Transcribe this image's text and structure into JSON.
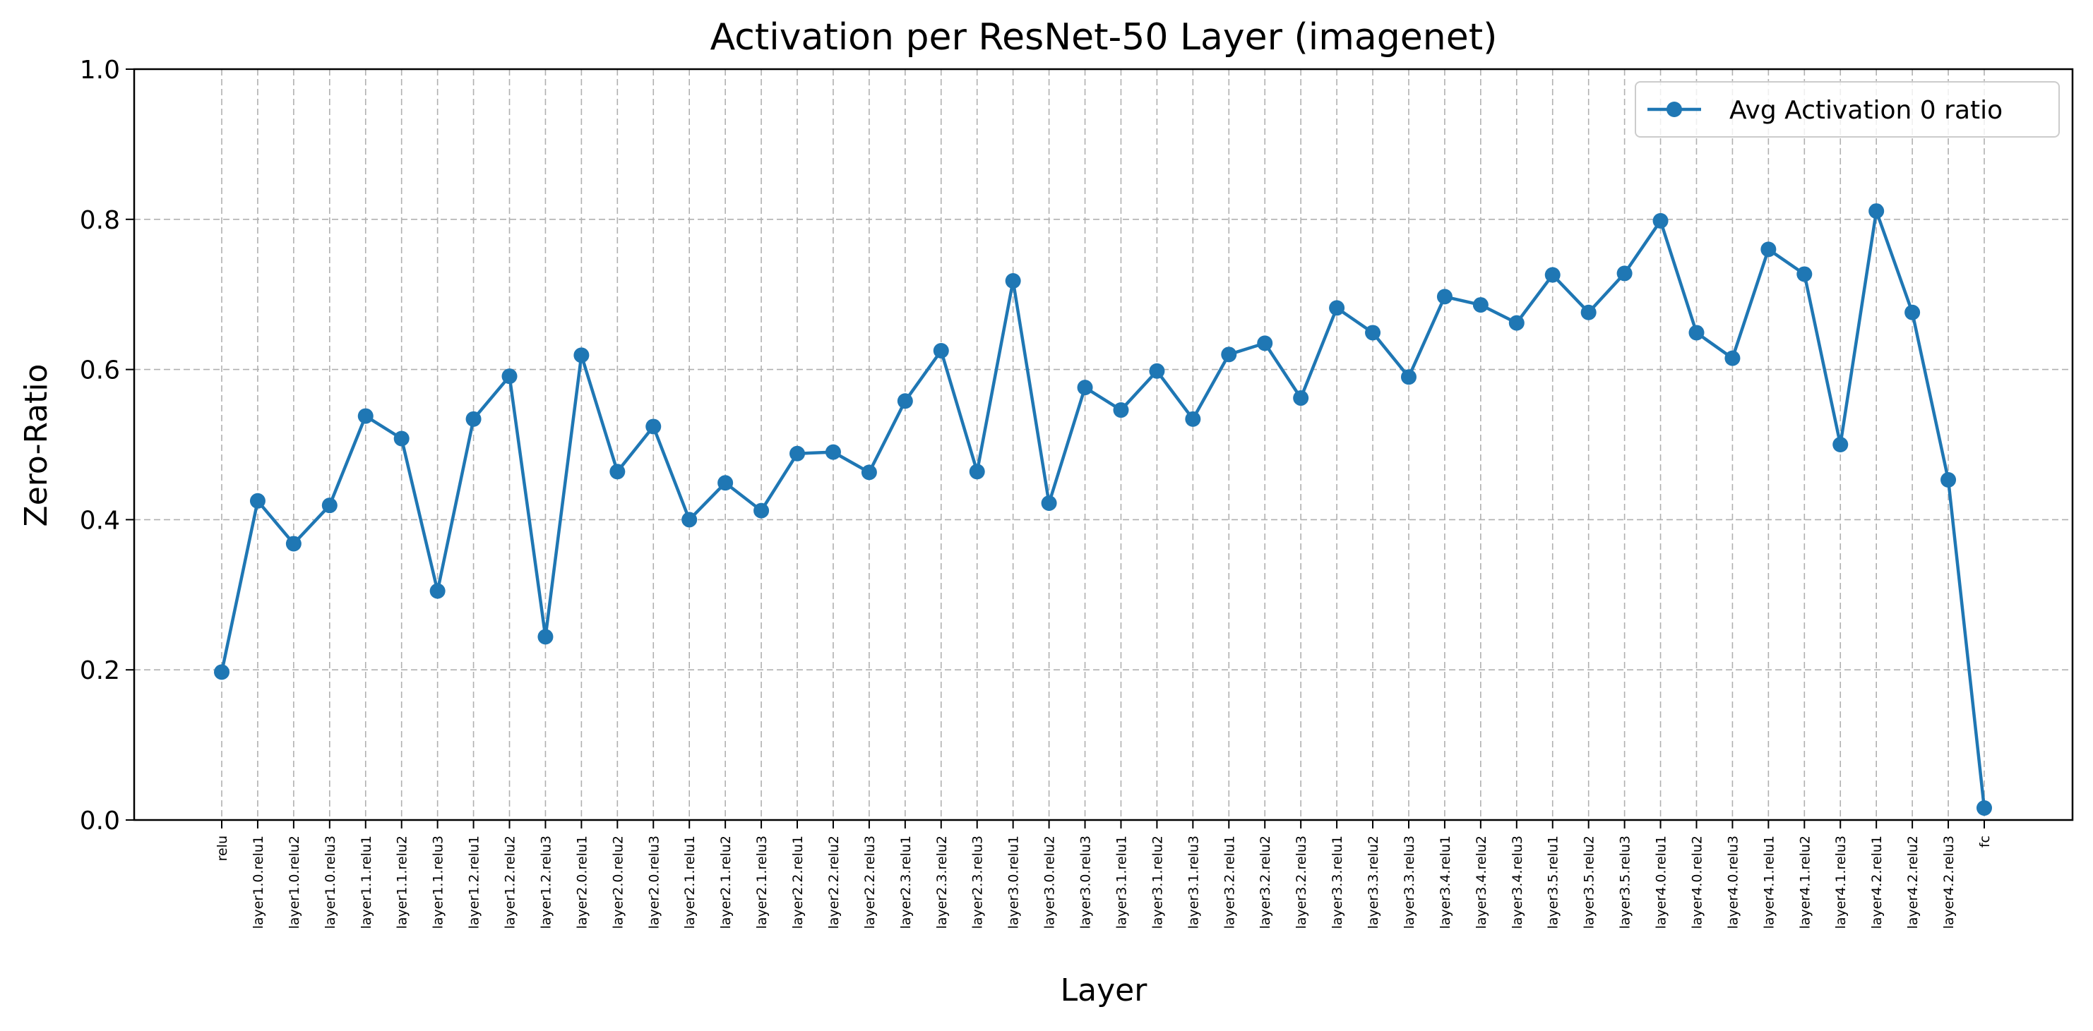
{
  "chart_data": {
    "type": "line",
    "title": "Activation  per ResNet-50 Layer (imagenet)",
    "xlabel": "Layer",
    "ylabel": "Zero-Ratio",
    "ylim": [
      0,
      1
    ],
    "yticks": [
      "0.0",
      "0.2",
      "0.4",
      "0.6",
      "0.8",
      "1.0"
    ],
    "grid": true,
    "legend_position": "top-right",
    "colors": {
      "series": "#1f77b4",
      "grid": "#b0b0b0",
      "axes": "#000000"
    },
    "categories": [
      "relu",
      "layer1.0.relu1",
      "layer1.0.relu2",
      "layer1.0.relu3",
      "layer1.1.relu1",
      "layer1.1.relu2",
      "layer1.1.relu3",
      "layer1.2.relu1",
      "layer1.2.relu2",
      "layer1.2.relu3",
      "layer2.0.relu1",
      "layer2.0.relu2",
      "layer2.0.relu3",
      "layer2.1.relu1",
      "layer2.1.relu2",
      "layer2.1.relu3",
      "layer2.2.relu1",
      "layer2.2.relu2",
      "layer2.2.relu3",
      "layer2.3.relu1",
      "layer2.3.relu2",
      "layer2.3.relu3",
      "layer3.0.relu1",
      "layer3.0.relu2",
      "layer3.0.relu3",
      "layer3.1.relu1",
      "layer3.1.relu2",
      "layer3.1.relu3",
      "layer3.2.relu1",
      "layer3.2.relu2",
      "layer3.2.relu3",
      "layer3.3.relu1",
      "layer3.3.relu2",
      "layer3.3.relu3",
      "layer3.4.relu1",
      "layer3.4.relu2",
      "layer3.4.relu3",
      "layer3.5.relu1",
      "layer3.5.relu2",
      "layer3.5.relu3",
      "layer4.0.relu1",
      "layer4.0.relu2",
      "layer4.0.relu3",
      "layer4.1.relu1",
      "layer4.1.relu2",
      "layer4.1.relu3",
      "layer4.2.relu1",
      "layer4.2.relu2",
      "layer4.2.relu3",
      "fc"
    ],
    "series": [
      {
        "name": "Avg Activation 0 ratio",
        "values": [
          0.197,
          0.425,
          0.368,
          0.419,
          0.538,
          0.508,
          0.305,
          0.534,
          0.591,
          0.244,
          0.619,
          0.464,
          0.524,
          0.4,
          0.449,
          0.412,
          0.488,
          0.49,
          0.463,
          0.558,
          0.625,
          0.464,
          0.718,
          0.422,
          0.576,
          0.546,
          0.598,
          0.534,
          0.62,
          0.635,
          0.562,
          0.682,
          0.649,
          0.59,
          0.697,
          0.686,
          0.662,
          0.726,
          0.676,
          0.728,
          0.798,
          0.649,
          0.615,
          0.76,
          0.727,
          0.5,
          0.811,
          0.676,
          0.453,
          0.016
        ]
      }
    ]
  }
}
